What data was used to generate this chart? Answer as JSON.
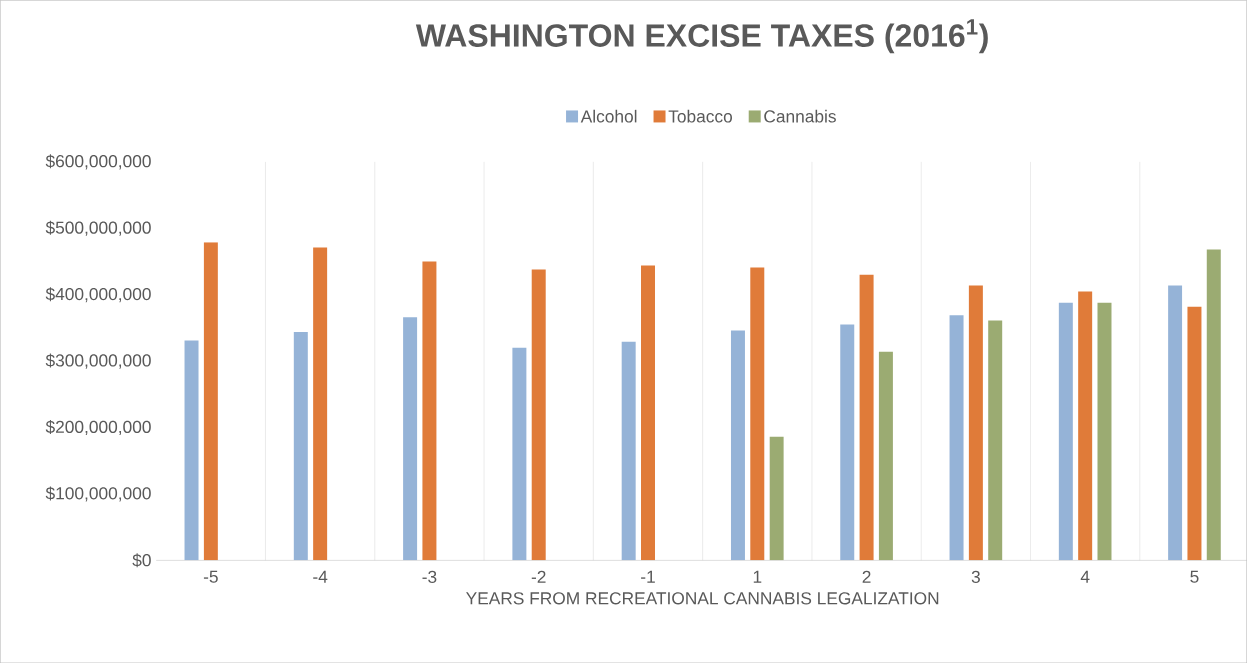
{
  "chart_data": {
    "type": "bar",
    "title": "WASHINGTON EXCISE TAXES (2016$^{1}$)",
    "xlabel": "YEARS FROM RECREATIONAL CANNABIS LEGALIZATION",
    "categories": [
      "-5",
      "-4",
      "-3",
      "-2",
      "-1",
      "1",
      "2",
      "3",
      "4",
      "5"
    ],
    "series": [
      {
        "name": "Alcohol",
        "color": "#95b3d7",
        "values": [
          331000000,
          344000000,
          366000000,
          320000000,
          329000000,
          346000000,
          355000000,
          369000000,
          388000000,
          414000000
        ]
      },
      {
        "name": "Tobacco",
        "color": "#e07b39",
        "values": [
          479000000,
          471000000,
          450000000,
          438000000,
          444000000,
          441000000,
          430000000,
          414000000,
          405000000,
          382000000
        ]
      },
      {
        "name": "Cannabis",
        "color": "#9bab72",
        "values": [
          null,
          null,
          null,
          null,
          null,
          186000000,
          314000000,
          361000000,
          388000000,
          468000000
        ]
      }
    ],
    "ylim": [
      0,
      600000000
    ],
    "yticks": [
      {
        "value": 0,
        "label": "$0"
      },
      {
        "value": 100000000,
        "label": "$100,000,000"
      },
      {
        "value": 200000000,
        "label": "$200,000,000"
      },
      {
        "value": 300000000,
        "label": "$300,000,000"
      },
      {
        "value": 400000000,
        "label": "$400,000,000"
      },
      {
        "value": 500000000,
        "label": "$500,000,000"
      },
      {
        "value": 600000000,
        "label": "$600,000,000"
      }
    ],
    "grid": "x",
    "legend": "top"
  }
}
